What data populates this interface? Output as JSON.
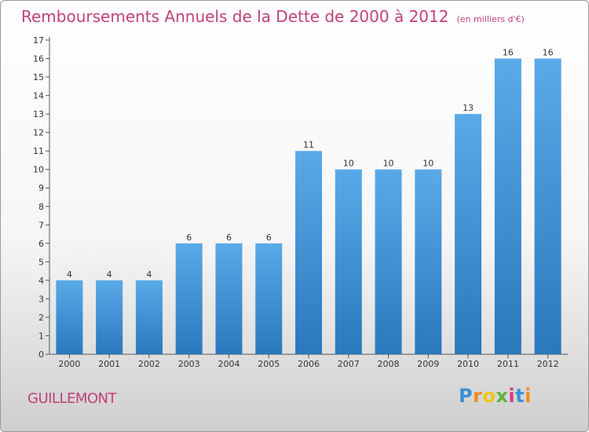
{
  "title": "Remboursements Annuels de la Dette de 2000 à 2012",
  "unit": "(en milliers d'€)",
  "commune": "GUILLEMONT",
  "logo": {
    "text": "Proxiti",
    "letter_colors": [
      "#3a8fd6",
      "#f28c1e",
      "#f0c419",
      "#5db33b",
      "#d93a7f",
      "#3a8fd6",
      "#f28c1e"
    ]
  },
  "colors": {
    "title": "#c0417a",
    "bar_top": "#5aaae8",
    "bar_bottom": "#2a78bd"
  },
  "chart_data": {
    "type": "bar",
    "categories": [
      "2000",
      "2001",
      "2002",
      "2003",
      "2004",
      "2005",
      "2006",
      "2007",
      "2008",
      "2009",
      "2010",
      "2011",
      "2012"
    ],
    "values": [
      4,
      4,
      4,
      6,
      6,
      6,
      11,
      10,
      10,
      10,
      13,
      16,
      16
    ],
    "ylim": [
      0,
      17
    ],
    "yticks": [
      0,
      1,
      2,
      3,
      4,
      5,
      6,
      7,
      8,
      9,
      10,
      11,
      12,
      13,
      14,
      15,
      16,
      17
    ],
    "grid": false,
    "xlabel": "",
    "ylabel": ""
  }
}
